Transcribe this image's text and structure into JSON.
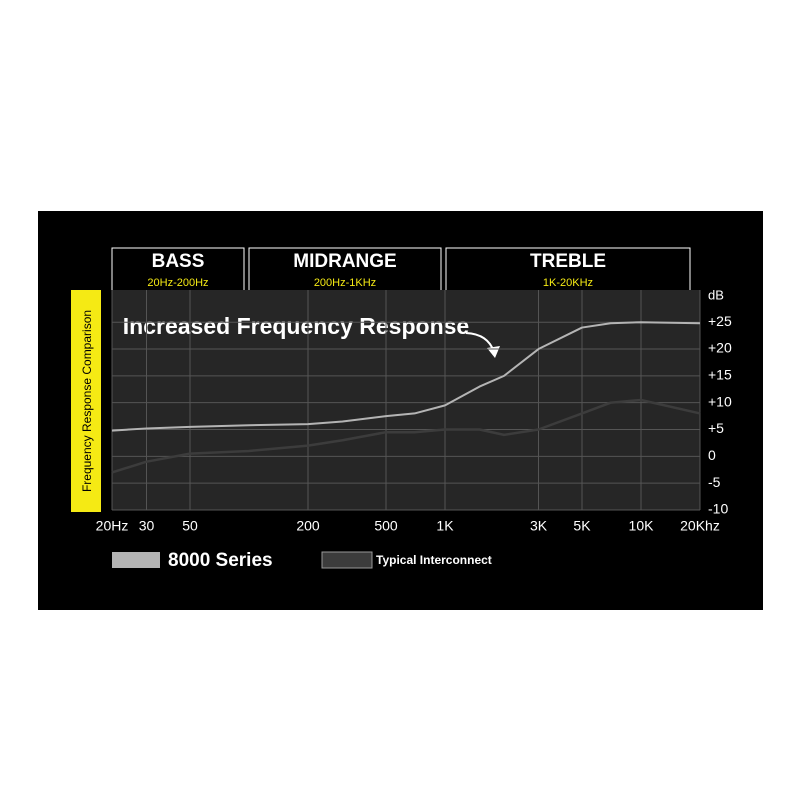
{
  "chart_data": {
    "type": "line",
    "title": "Frequency Response Comparison",
    "annotation": "Increased Frequency Response",
    "bands": [
      {
        "name": "BASS",
        "range": "20Hz-200Hz"
      },
      {
        "name": "MIDRANGE",
        "range": "200Hz-1KHz"
      },
      {
        "name": "TREBLE",
        "range": "1K-20KHz"
      }
    ],
    "y_unit": "dB",
    "xscale": "log",
    "grid": true,
    "x": [
      20,
      30,
      50,
      100,
      200,
      300,
      500,
      700,
      1000,
      1500,
      2000,
      3000,
      5000,
      7000,
      10000,
      20000
    ],
    "series": [
      {
        "name": "8000 Series",
        "color": "#b4b4b4",
        "values": [
          4.8,
          5.2,
          5.5,
          5.8,
          6,
          6.5,
          7.5,
          8,
          9.5,
          13,
          15,
          20,
          24,
          24.8,
          25,
          24.8
        ]
      },
      {
        "name": "Typical Interconnect",
        "color": "#3c3c3c",
        "values": [
          -3,
          -1,
          0.5,
          1,
          2,
          3,
          4.5,
          4.5,
          5,
          5,
          4,
          5,
          8,
          10,
          10.5,
          8
        ]
      }
    ],
    "xlim": [
      20,
      20000
    ],
    "xticks": [
      {
        "value": 20,
        "label": "20Hz"
      },
      30,
      50,
      200,
      500,
      {
        "value": 1000,
        "label": "1K"
      },
      {
        "value": 3000,
        "label": "3K"
      },
      {
        "value": 5000,
        "label": "5K"
      },
      {
        "value": 10000,
        "label": "10K"
      },
      {
        "value": 20000,
        "label": "20Khz"
      }
    ],
    "ylim": [
      -10,
      31
    ],
    "yticks": [
      -10,
      -5,
      0,
      {
        "value": 5,
        "label": "+5"
      },
      {
        "value": 10,
        "label": "+10"
      },
      {
        "value": 15,
        "label": "+15"
      },
      {
        "value": 20,
        "label": "+20"
      },
      {
        "value": 25,
        "label": "+25"
      }
    ]
  }
}
